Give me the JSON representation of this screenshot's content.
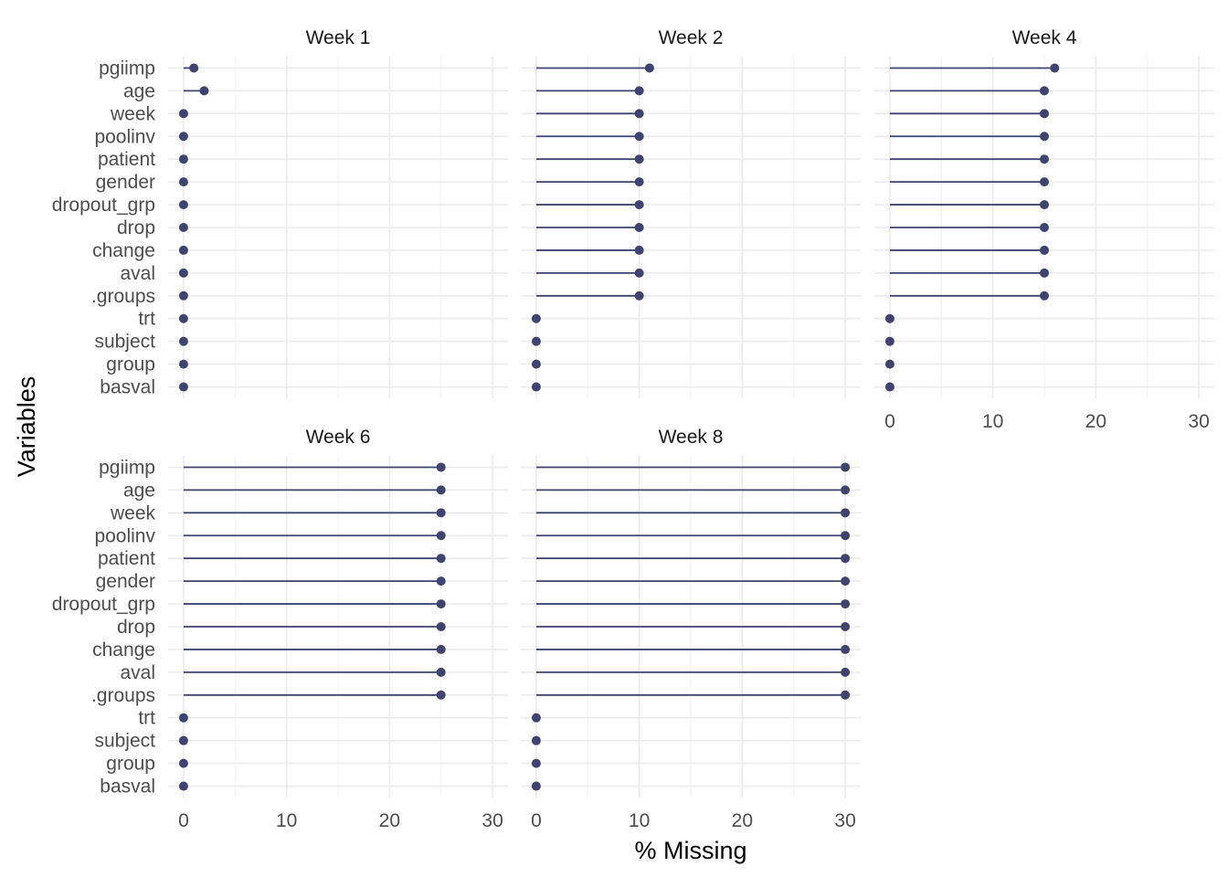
{
  "chart_data": {
    "type": "lollipop",
    "xlabel": "% Missing",
    "ylabel": "Variables",
    "xlim": [
      -1.5,
      31.5
    ],
    "xticks": [
      0,
      10,
      20,
      30
    ],
    "variables": [
      "pgiimp",
      "age",
      "week",
      "poolinv",
      "patient",
      "gender",
      "dropout_grp",
      "drop",
      "change",
      "aval",
      ".groups",
      "trt",
      "subject",
      "group",
      "basval"
    ],
    "color": "#3f4370",
    "panels": [
      {
        "title": "Week 1",
        "values": [
          1,
          2,
          0,
          0,
          0,
          0,
          0,
          0,
          0,
          0,
          0,
          0,
          0,
          0,
          0
        ]
      },
      {
        "title": "Week 2",
        "values": [
          11,
          10,
          10,
          10,
          10,
          10,
          10,
          10,
          10,
          10,
          10,
          0,
          0,
          0,
          0
        ]
      },
      {
        "title": "Week 4",
        "values": [
          16,
          15,
          15,
          15,
          15,
          15,
          15,
          15,
          15,
          15,
          15,
          0,
          0,
          0,
          0
        ]
      },
      {
        "title": "Week 6",
        "values": [
          25,
          25,
          25,
          25,
          25,
          25,
          25,
          25,
          25,
          25,
          25,
          0,
          0,
          0,
          0
        ]
      },
      {
        "title": "Week 8",
        "values": [
          30,
          30,
          30,
          30,
          30,
          30,
          30,
          30,
          30,
          30,
          30,
          0,
          0,
          0,
          0
        ]
      }
    ]
  }
}
